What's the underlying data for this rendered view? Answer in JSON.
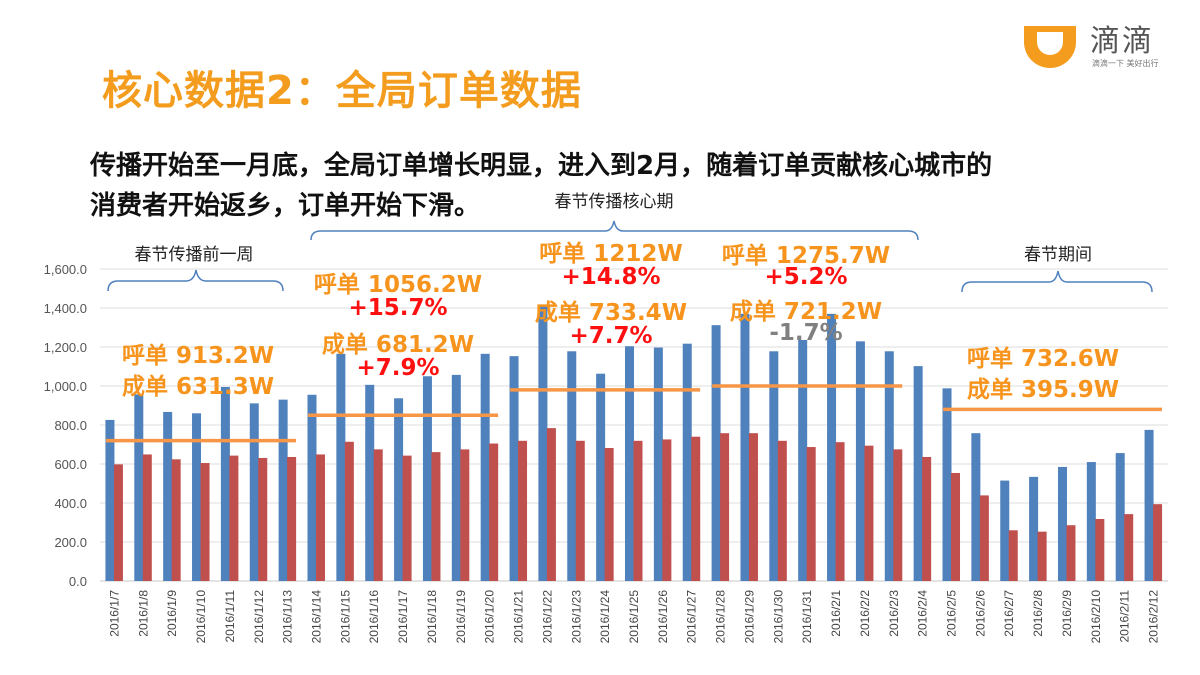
{
  "header": {
    "title": "核心数据2：全局订单数据",
    "subtitle_line1": "传播开始至一月底，全局订单增长明显，进入到2月，随着订单贡献核心城市的",
    "subtitle_line2": "消费者开始返乡，订单开始下滑。"
  },
  "logo": {
    "name": "滴滴",
    "slogan": "滴滴一下 美好出行",
    "color": "#f39c1e"
  },
  "brackets": {
    "pre_week": "春节传播前一周",
    "core_period": "春节传播核心期",
    "festival": "春节期间"
  },
  "annotations": {
    "g1": {
      "call": "呼单 913.2W",
      "done": "成单 631.3W"
    },
    "g2": {
      "call": "呼单 1056.2W",
      "call_change": "+15.7%",
      "done": "成单 681.2W",
      "done_change": "+7.9%"
    },
    "g3": {
      "call": "呼单 1212W",
      "call_change": "+14.8%",
      "done": "成单 733.4W",
      "done_change": "+7.7%"
    },
    "g4": {
      "call": "呼单 1275.7W",
      "call_change": "+5.2%",
      "done": "成单 721.2W",
      "done_change": "-1.7%"
    },
    "g5": {
      "call": "呼单 732.6W",
      "done": "成单 395.9W"
    }
  },
  "chart_data": {
    "type": "bar",
    "title": "",
    "xlabel": "",
    "ylabel": "",
    "ylim": [
      0,
      1600
    ],
    "yticks": [
      "0.0",
      "200.0",
      "400.0",
      "600.0",
      "800.0",
      "1,000.0",
      "1,200.0",
      "1,400.0",
      "1,600.0"
    ],
    "grid": true,
    "colors": {
      "blue": "#4f81bd",
      "red": "#c0504d",
      "avg_line": "#f79646"
    },
    "categories": [
      "2016/1/7",
      "2016/1/8",
      "2016/1/9",
      "2016/1/10",
      "2016/1/11",
      "2016/1/12",
      "2016/1/13",
      "2016/1/14",
      "2016/1/15",
      "2016/1/16",
      "2016/1/17",
      "2016/1/18",
      "2016/1/19",
      "2016/1/20",
      "2016/1/21",
      "2016/1/22",
      "2016/1/23",
      "2016/1/24",
      "2016/1/25",
      "2016/1/26",
      "2016/1/27",
      "2016/1/28",
      "2016/1/29",
      "2016/1/30",
      "2016/1/31",
      "2016/2/1",
      "2016/2/2",
      "2016/2/3",
      "2016/2/4",
      "2016/2/5",
      "2016/2/6",
      "2016/2/7",
      "2016/2/8",
      "2016/2/9",
      "2016/2/10",
      "2016/2/11",
      "2016/2/12"
    ],
    "series": [
      {
        "values": [
          826,
          957,
          867,
          860,
          995,
          911,
          930,
          955,
          1165,
          1006,
          937,
          1050,
          1057,
          1165,
          1153,
          1413,
          1178,
          1063,
          1204,
          1197,
          1217,
          1312,
          1370,
          1178,
          1236,
          1370,
          1229,
          1178,
          1102,
          988,
          758,
          515,
          534,
          585,
          610,
          656,
          775
        ]
      },
      {
        "values": [
          598,
          649,
          624,
          605,
          643,
          631,
          636,
          649,
          714,
          675,
          643,
          661,
          675,
          705,
          719,
          784,
          719,
          682,
          719,
          726,
          740,
          758,
          758,
          719,
          687,
          712,
          694,
          675,
          636,
          554,
          439,
          260,
          253,
          286,
          318,
          343,
          394
        ]
      }
    ],
    "average_lines": [
      {
        "from": "2016/1/7",
        "to": "2016/1/13",
        "value": 720
      },
      {
        "from": "2016/1/14",
        "to": "2016/1/20",
        "value": 850
      },
      {
        "from": "2016/1/21",
        "to": "2016/1/27",
        "value": 980
      },
      {
        "from": "2016/1/28",
        "to": "2016/2/3",
        "value": 1000
      },
      {
        "from": "2016/2/5",
        "to": "2016/2/12",
        "value": 880
      }
    ]
  }
}
